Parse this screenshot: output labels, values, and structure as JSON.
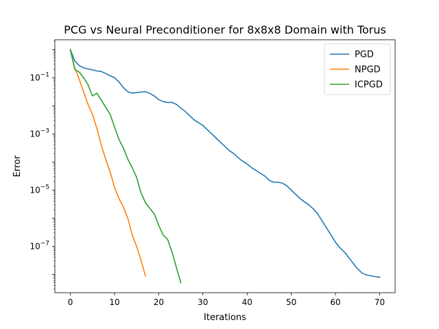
{
  "chart_data": {
    "type": "line",
    "title": "PCG vs Neural Preconditioner for 8x8x8 Domain with Torus",
    "xlabel": "Iterations",
    "ylabel": "Error",
    "xlim": [
      -3.5,
      73.5
    ],
    "ylim_log10": [
      -8.65,
      0.35
    ],
    "yscale": "log",
    "x_ticks": [
      0,
      10,
      20,
      30,
      40,
      50,
      60,
      70
    ],
    "y_ticks": [
      {
        "exp": -1,
        "label": "10",
        "sup": "−1"
      },
      {
        "exp": -3,
        "label": "10",
        "sup": "−3"
      },
      {
        "exp": -5,
        "label": "10",
        "sup": "−5"
      },
      {
        "exp": -7,
        "label": "10",
        "sup": "−7"
      }
    ],
    "grid": false,
    "legend": "top-right",
    "series": [
      {
        "name": "PGD",
        "color": "#1f77b4",
        "x": [
          0,
          1,
          2,
          3,
          4,
          5,
          6,
          7,
          8,
          9,
          10,
          11,
          12,
          13,
          14,
          15,
          16,
          17,
          18,
          19,
          20,
          21,
          22,
          23,
          24,
          25,
          26,
          27,
          28,
          29,
          30,
          31,
          32,
          33,
          34,
          35,
          36,
          37,
          38,
          39,
          40,
          41,
          42,
          43,
          44,
          45,
          46,
          47,
          48,
          49,
          50,
          51,
          52,
          53,
          54,
          55,
          56,
          57,
          58,
          59,
          60,
          61,
          62,
          63,
          64,
          65,
          66,
          67,
          68,
          69,
          70
        ],
        "log10": [
          0.0,
          -0.4,
          -0.57,
          -0.65,
          -0.69,
          -0.72,
          -0.76,
          -0.78,
          -0.85,
          -0.93,
          -1.0,
          -1.15,
          -1.35,
          -1.5,
          -1.55,
          -1.53,
          -1.51,
          -1.5,
          -1.56,
          -1.65,
          -1.78,
          -1.85,
          -1.88,
          -1.88,
          -1.95,
          -2.08,
          -2.2,
          -2.35,
          -2.5,
          -2.6,
          -2.7,
          -2.85,
          -3.0,
          -3.15,
          -3.3,
          -3.45,
          -3.6,
          -3.7,
          -3.85,
          -3.97,
          -4.07,
          -4.2,
          -4.3,
          -4.4,
          -4.5,
          -4.65,
          -4.72,
          -4.72,
          -4.75,
          -4.85,
          -5.0,
          -5.15,
          -5.3,
          -5.42,
          -5.53,
          -5.67,
          -5.85,
          -6.1,
          -6.35,
          -6.6,
          -6.85,
          -7.05,
          -7.2,
          -7.4,
          -7.6,
          -7.8,
          -7.95,
          -8.02,
          -8.05,
          -8.08,
          -8.1
        ]
      },
      {
        "name": "NPGD",
        "color": "#ff7f0e",
        "x": [
          0,
          1,
          2,
          3,
          4,
          5,
          6,
          7,
          8,
          9,
          10,
          11,
          12,
          13,
          14,
          15,
          16,
          17
        ],
        "log10": [
          0.0,
          -0.65,
          -1.05,
          -1.5,
          -1.95,
          -2.3,
          -2.8,
          -3.4,
          -3.9,
          -4.35,
          -4.9,
          -5.3,
          -5.6,
          -6.0,
          -6.6,
          -7.0,
          -7.5,
          -8.05
        ]
      },
      {
        "name": "ICPGD",
        "color": "#2ca02c",
        "x": [
          0,
          1,
          2,
          3,
          4,
          5,
          6,
          7,
          8,
          9,
          10,
          11,
          12,
          13,
          14,
          15,
          16,
          17,
          18,
          19,
          20,
          21,
          22,
          23,
          24,
          25
        ],
        "log10": [
          0.0,
          -0.7,
          -0.8,
          -1.0,
          -1.25,
          -1.65,
          -1.55,
          -1.8,
          -2.05,
          -2.3,
          -2.75,
          -3.2,
          -3.5,
          -3.9,
          -4.2,
          -4.55,
          -5.1,
          -5.45,
          -5.65,
          -5.85,
          -6.25,
          -6.6,
          -6.75,
          -7.2,
          -7.75,
          -8.3
        ]
      }
    ]
  }
}
